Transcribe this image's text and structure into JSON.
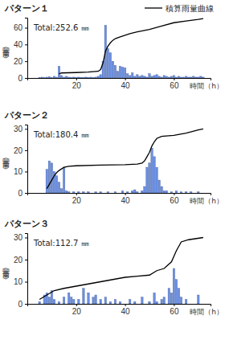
{
  "chart_data": [
    {
      "type": "bar",
      "title": "パターン１",
      "annotation": "Total:252.6 ㎜",
      "y_label": "雨量（㎜）",
      "x_label": "時間（h）",
      "legend": "top-right",
      "grid": false,
      "xlim": [
        0,
        75
      ],
      "xticks": [
        20,
        40,
        60
      ],
      "ylim": [
        0,
        72
      ],
      "yticks": [
        0,
        20,
        40,
        60
      ],
      "series": [
        {
          "type": "bar",
          "color": "#6b8fe3",
          "x": [
            5,
            6,
            7,
            8,
            9,
            10,
            11,
            12,
            13,
            14,
            15,
            16,
            17,
            18,
            19,
            20,
            21,
            22,
            23,
            24,
            25,
            26,
            27,
            28,
            29,
            30,
            31,
            32,
            33,
            34,
            35,
            36,
            37,
            38,
            39,
            40,
            41,
            42,
            43,
            44,
            45,
            46,
            47,
            48,
            49,
            50,
            51,
            52,
            53,
            54,
            55,
            56,
            57,
            58,
            59,
            60,
            61,
            62,
            63,
            64,
            65,
            66,
            67,
            68,
            69,
            70,
            71,
            72
          ],
          "values": [
            0.5,
            1,
            0.5,
            1,
            1.5,
            0.5,
            2,
            1,
            14,
            3,
            1,
            2,
            1,
            0.5,
            1,
            0.5,
            1,
            0.5,
            0.5,
            1,
            0.5,
            1,
            0.5,
            1,
            2,
            4,
            20,
            63,
            35,
            30,
            20,
            15,
            8,
            14,
            13,
            12,
            5,
            3,
            6,
            2,
            4,
            2,
            3,
            2,
            1,
            5,
            2,
            3,
            4,
            2,
            1,
            3,
            2,
            1,
            2,
            3,
            1,
            2,
            1,
            1,
            2,
            1,
            1,
            2,
            1,
            1,
            2,
            1
          ]
        },
        {
          "type": "line",
          "name": "積算雨量曲線",
          "color": "#000000",
          "x": [
            13,
            14,
            20,
            25,
            29,
            30,
            31,
            32,
            33,
            34,
            35,
            36,
            38,
            40,
            42,
            45,
            50,
            55,
            60,
            65,
            70,
            72
          ],
          "values": [
            5,
            6,
            6.5,
            7,
            8,
            10,
            18,
            32,
            38,
            42,
            45,
            47,
            49,
            51,
            53,
            55,
            58,
            62,
            66,
            68,
            70,
            71
          ]
        }
      ]
    },
    {
      "type": "bar",
      "title": "パターン２",
      "annotation": "Total:180.4 ㎜",
      "y_label": "雨量（㎜）",
      "x_label": "時間（h）",
      "grid": false,
      "xlim": [
        0,
        75
      ],
      "xticks": [
        20,
        40,
        60
      ],
      "ylim": [
        0,
        32
      ],
      "yticks": [
        0,
        10,
        20,
        30
      ],
      "series": [
        {
          "type": "bar",
          "color": "#6b8fe3",
          "x": [
            8,
            9,
            10,
            11,
            12,
            13,
            14,
            15,
            16,
            17,
            19,
            21,
            23,
            25,
            28,
            30,
            33,
            36,
            39,
            41,
            43,
            44,
            45,
            47,
            48,
            49,
            50,
            51,
            52,
            53,
            54,
            55,
            56,
            57,
            59,
            61,
            63,
            65,
            67,
            70
          ],
          "values": [
            11,
            15,
            14,
            10,
            8,
            5,
            2,
            12,
            1,
            0.5,
            0.5,
            0.5,
            0.5,
            0.5,
            0.5,
            0.5,
            0.5,
            0.5,
            1,
            0.5,
            1,
            1.5,
            0.5,
            1,
            3,
            12,
            14,
            21,
            17,
            12,
            6,
            3,
            1,
            1,
            0.5,
            1,
            0.5,
            0.5,
            0.5,
            0.5
          ]
        },
        {
          "type": "line",
          "color": "#000000",
          "x": [
            8,
            9,
            10,
            11,
            12,
            13,
            15,
            17,
            20,
            30,
            40,
            45,
            47,
            48,
            49,
            50,
            51,
            52,
            53,
            55,
            60,
            65,
            70,
            72
          ],
          "values": [
            2,
            4,
            6,
            8,
            9.5,
            10.5,
            12,
            12.5,
            12.7,
            13,
            13.2,
            13.5,
            14,
            15,
            17,
            19,
            22,
            24,
            25.5,
            26.5,
            27,
            28,
            29.5,
            30
          ]
        }
      ]
    },
    {
      "type": "bar",
      "title": "パターン３",
      "annotation": "Total:112.7 ㎜",
      "y_label": "雨量（㎜）",
      "x_label": "時間（h）",
      "grid": false,
      "xlim": [
        0,
        75
      ],
      "xticks": [
        20,
        40,
        60
      ],
      "ylim": [
        0,
        32
      ],
      "yticks": [
        0,
        10,
        20,
        30
      ],
      "series": [
        {
          "type": "bar",
          "color": "#6b8fe3",
          "x": [
            5,
            7,
            8,
            9,
            10,
            11,
            13,
            15,
            17,
            18,
            19,
            21,
            23,
            25,
            27,
            28,
            30,
            32,
            34,
            36,
            38,
            42,
            44,
            47,
            50,
            52,
            53,
            55,
            56,
            58,
            59,
            60,
            61,
            62,
            63,
            65,
            70
          ],
          "values": [
            1,
            4,
            5,
            3,
            6,
            2,
            1,
            3,
            5,
            3,
            2,
            2,
            7,
            5,
            3,
            4,
            2,
            3,
            1,
            2,
            1,
            2,
            1,
            3,
            1,
            5,
            1,
            2,
            3,
            7,
            5,
            16,
            11,
            7,
            3,
            2,
            4
          ]
        },
        {
          "type": "line",
          "color": "#000000",
          "x": [
            5,
            8,
            11,
            15,
            20,
            25,
            30,
            35,
            40,
            45,
            50,
            53,
            56,
            59,
            61,
            63,
            66,
            72
          ],
          "values": [
            2,
            4,
            6,
            7,
            8,
            9,
            10,
            11,
            12,
            12.5,
            13,
            15,
            16,
            19,
            24,
            28,
            29,
            30
          ]
        }
      ]
    }
  ]
}
